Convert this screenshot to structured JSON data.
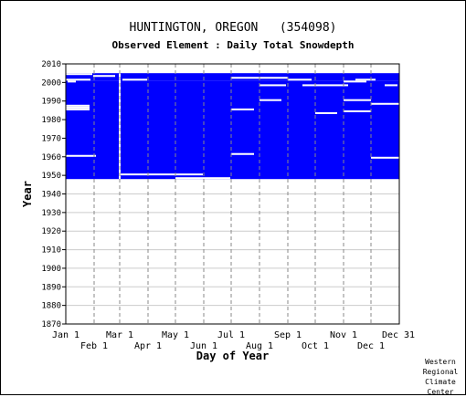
{
  "title": "HUNTINGTON, OREGON   (354098)",
  "subtitle": "Observed Element : Daily Total Snowdepth",
  "footer": [
    "Western",
    "Regional",
    "Climate",
    "Center"
  ],
  "colors": {
    "data": "#0000ff",
    "grid_v": "#888888",
    "grid_h": "#cccccc",
    "axis": "#000000"
  },
  "chart_data": {
    "type": "heatmap",
    "xlabel": "Day of Year",
    "ylabel": "Year",
    "ylim": [
      1870,
      2010
    ],
    "xlim": [
      1,
      366
    ],
    "grid": true,
    "xticks_top": [
      {
        "label": "Jan 1",
        "day": 1
      },
      {
        "label": "Mar 1",
        "day": 60
      },
      {
        "label": "May 1",
        "day": 121
      },
      {
        "label": "Jul 1",
        "day": 182
      },
      {
        "label": "Sep 1",
        "day": 244
      },
      {
        "label": "Nov 1",
        "day": 305
      },
      {
        "label": "Dec 31",
        "day": 365
      }
    ],
    "xticks_bottom": [
      {
        "label": "Feb 1",
        "day": 32
      },
      {
        "label": "Apr 1",
        "day": 91
      },
      {
        "label": "Jun 1",
        "day": 152
      },
      {
        "label": "Aug 1",
        "day": 213
      },
      {
        "label": "Oct 1",
        "day": 274
      },
      {
        "label": "Dec 1",
        "day": 335
      }
    ],
    "yticks": [
      2010,
      2000,
      1990,
      1980,
      1970,
      1960,
      1950,
      1940,
      1930,
      1920,
      1910,
      1900,
      1890,
      1880,
      1870
    ],
    "observed_blocks": [
      {
        "day_start": 1,
        "day_end": 366,
        "year_start": 1948,
        "year_end": 2001
      },
      {
        "day_start": 1,
        "day_end": 60,
        "year_start": 2001,
        "year_end": 2005
      },
      {
        "day_start": 60,
        "day_end": 366,
        "year_start": 2001,
        "year_end": 2005
      }
    ],
    "missing_segments": [
      {
        "year": 2004,
        "day_start": 1,
        "day_end": 30
      },
      {
        "year": 2003,
        "day_start": 31,
        "day_end": 55
      },
      {
        "year": 2001,
        "day_start": 1,
        "day_end": 28
      },
      {
        "year": 2001,
        "day_start": 63,
        "day_end": 90
      },
      {
        "year": 2000,
        "day_start": 3,
        "day_end": 12
      },
      {
        "year": 1987,
        "day_start": 1,
        "day_end": 27
      },
      {
        "year": 1986,
        "day_start": 1,
        "day_end": 27
      },
      {
        "year": 1985,
        "day_start": 1,
        "day_end": 27
      },
      {
        "year": 1960,
        "day_start": 1,
        "day_end": 34
      },
      {
        "year": 1950,
        "day_start": 60,
        "day_end": 151
      },
      {
        "year": 1948,
        "day_start": 121,
        "day_end": 181
      },
      {
        "year": 2002,
        "day_start": 182,
        "day_end": 244
      },
      {
        "year": 2001,
        "day_start": 244,
        "day_end": 270
      },
      {
        "year": 2001,
        "day_start": 318,
        "day_end": 340
      },
      {
        "year": 2000,
        "day_start": 305,
        "day_end": 330
      },
      {
        "year": 1998,
        "day_start": 213,
        "day_end": 242
      },
      {
        "year": 1998,
        "day_start": 260,
        "day_end": 310
      },
      {
        "year": 1998,
        "day_start": 350,
        "day_end": 364
      },
      {
        "year": 1990,
        "day_start": 213,
        "day_end": 237
      },
      {
        "year": 1990,
        "day_start": 305,
        "day_end": 335
      },
      {
        "year": 1988,
        "day_start": 335,
        "day_end": 366
      },
      {
        "year": 1985,
        "day_start": 182,
        "day_end": 207
      },
      {
        "year": 1984,
        "day_start": 305,
        "day_end": 335
      },
      {
        "year": 1983,
        "day_start": 274,
        "day_end": 298
      },
      {
        "year": 1961,
        "day_start": 182,
        "day_end": 207
      },
      {
        "year": 1959,
        "day_start": 335,
        "day_end": 366
      }
    ],
    "missing_columns": [
      {
        "day": 60,
        "year_start": 1948,
        "year_end": 2005
      }
    ]
  }
}
